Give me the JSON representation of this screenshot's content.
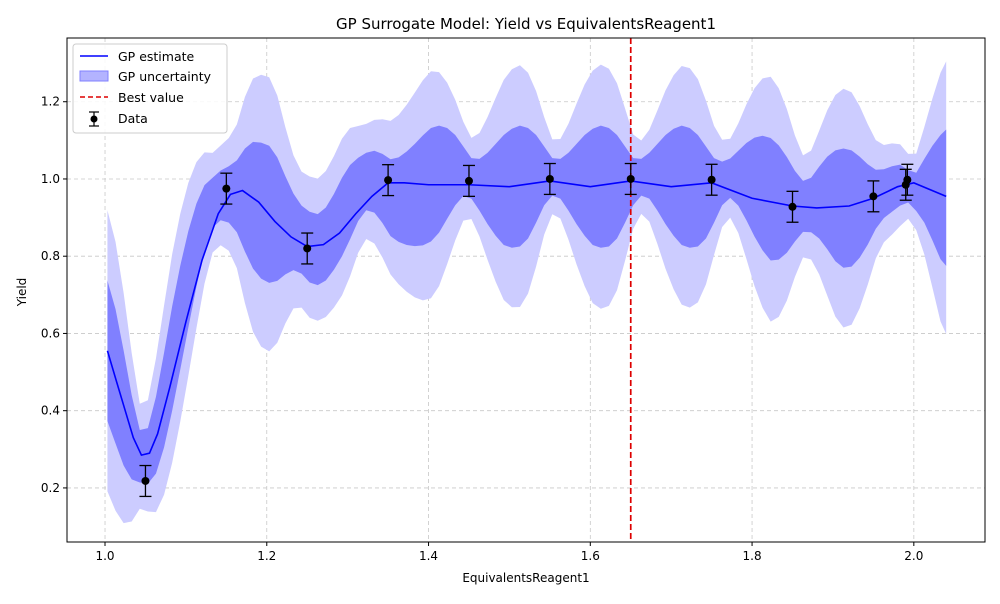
{
  "chart_data": {
    "type": "line",
    "title": "GP Surrogate Model: Yield vs EquivalentsReagent1",
    "xlabel": "EquivalentsReagent1",
    "ylabel": "Yield",
    "xlim": [
      0.953,
      2.088
    ],
    "ylim": [
      0.06,
      1.365
    ],
    "xticks": [
      1.0,
      1.2,
      1.4,
      1.6,
      1.8,
      2.0
    ],
    "xtick_labels": [
      "1.0",
      "1.2",
      "1.4",
      "1.6",
      "1.8",
      "2.0"
    ],
    "yticks": [
      0.2,
      0.4,
      0.6,
      0.8,
      1.0,
      1.2
    ],
    "ytick_labels": [
      "0.2",
      "0.4",
      "0.6",
      "0.8",
      "1.0",
      "1.2"
    ],
    "grid": true,
    "legend_position": "top-left",
    "legend": [
      "GP estimate",
      "GP uncertainty",
      "Best value",
      "Data"
    ],
    "colors": {
      "gp_line": "#0000ff",
      "band_inner": "#8080ff",
      "band_outer": "#ccccff",
      "best_line": "#dd0000",
      "data": "#000000",
      "grid": "#c8c8c8"
    },
    "gp_estimate": {
      "name": "GP estimate",
      "x": [
        1.003,
        1.015,
        1.025,
        1.035,
        1.045,
        1.055,
        1.065,
        1.08,
        1.1,
        1.12,
        1.14,
        1.155,
        1.17,
        1.19,
        1.21,
        1.23,
        1.25,
        1.27,
        1.29,
        1.31,
        1.33,
        1.35,
        1.37,
        1.4,
        1.45,
        1.5,
        1.55,
        1.6,
        1.65,
        1.7,
        1.75,
        1.8,
        1.85,
        1.88,
        1.92,
        1.95,
        1.98,
        2.0,
        2.04
      ],
      "y": [
        0.555,
        0.47,
        0.4,
        0.33,
        0.285,
        0.29,
        0.34,
        0.46,
        0.63,
        0.79,
        0.91,
        0.96,
        0.97,
        0.94,
        0.89,
        0.85,
        0.825,
        0.83,
        0.86,
        0.91,
        0.955,
        0.99,
        0.99,
        0.985,
        0.985,
        0.98,
        0.995,
        0.98,
        0.995,
        0.98,
        0.99,
        0.95,
        0.93,
        0.925,
        0.93,
        0.95,
        0.98,
        0.99,
        0.955
      ]
    },
    "uncertainty": {
      "name": "GP uncertainty",
      "x": [
        1.003,
        1.013,
        1.023,
        1.033,
        1.043,
        1.053,
        1.063,
        1.073,
        1.083,
        1.093,
        1.103,
        1.113,
        1.123,
        1.133,
        1.143,
        1.153,
        1.163,
        1.173,
        1.183,
        1.193,
        1.203,
        1.213,
        1.223,
        1.233,
        1.243,
        1.253,
        1.263,
        1.273,
        1.283,
        1.293,
        1.303,
        1.313,
        1.323,
        1.333,
        1.343,
        1.353,
        1.363,
        1.373,
        1.383,
        1.393,
        1.403,
        1.413,
        1.423,
        1.433,
        1.443,
        1.453,
        1.463,
        1.473,
        1.483,
        1.493,
        1.503,
        1.513,
        1.523,
        1.533,
        1.543,
        1.553,
        1.563,
        1.573,
        1.583,
        1.593,
        1.603,
        1.613,
        1.623,
        1.633,
        1.643,
        1.653,
        1.663,
        1.673,
        1.683,
        1.693,
        1.703,
        1.713,
        1.723,
        1.733,
        1.743,
        1.753,
        1.763,
        1.773,
        1.783,
        1.793,
        1.803,
        1.813,
        1.823,
        1.833,
        1.843,
        1.853,
        1.863,
        1.873,
        1.883,
        1.893,
        1.903,
        1.913,
        1.923,
        1.933,
        1.943,
        1.953,
        1.963,
        1.973,
        1.983,
        1.993,
        2.003,
        2.013,
        2.023,
        2.033,
        2.04
      ],
      "inner_lower": [
        0.373,
        0.315,
        0.258,
        0.222,
        0.214,
        0.211,
        0.237,
        0.305,
        0.4,
        0.506,
        0.615,
        0.721,
        0.814,
        0.874,
        0.893,
        0.887,
        0.862,
        0.812,
        0.768,
        0.742,
        0.731,
        0.736,
        0.753,
        0.764,
        0.755,
        0.732,
        0.725,
        0.737,
        0.765,
        0.8,
        0.844,
        0.891,
        0.919,
        0.913,
        0.886,
        0.852,
        0.837,
        0.829,
        0.826,
        0.828,
        0.838,
        0.861,
        0.897,
        0.932,
        0.956,
        0.949,
        0.918,
        0.883,
        0.853,
        0.829,
        0.822,
        0.825,
        0.846,
        0.887,
        0.932,
        0.957,
        0.949,
        0.918,
        0.883,
        0.853,
        0.829,
        0.822,
        0.825,
        0.846,
        0.887,
        0.932,
        0.957,
        0.949,
        0.918,
        0.883,
        0.853,
        0.829,
        0.822,
        0.825,
        0.846,
        0.887,
        0.932,
        0.951,
        0.931,
        0.893,
        0.851,
        0.815,
        0.789,
        0.791,
        0.809,
        0.838,
        0.863,
        0.862,
        0.846,
        0.818,
        0.787,
        0.77,
        0.773,
        0.796,
        0.83,
        0.871,
        0.899,
        0.915,
        0.931,
        0.939,
        0.917,
        0.887,
        0.841,
        0.792,
        0.775
      ],
      "inner_upper": [
        0.737,
        0.663,
        0.556,
        0.44,
        0.35,
        0.355,
        0.436,
        0.55,
        0.67,
        0.775,
        0.865,
        0.936,
        0.984,
        1.003,
        1.022,
        1.033,
        1.048,
        1.079,
        1.096,
        1.094,
        1.086,
        1.056,
        1.007,
        0.962,
        0.931,
        0.915,
        0.909,
        0.926,
        0.961,
        1.003,
        1.036,
        1.055,
        1.068,
        1.073,
        1.065,
        1.051,
        1.056,
        1.071,
        1.091,
        1.113,
        1.132,
        1.138,
        1.132,
        1.114,
        1.084,
        1.054,
        1.052,
        1.068,
        1.091,
        1.114,
        1.13,
        1.138,
        1.132,
        1.114,
        1.084,
        1.054,
        1.052,
        1.068,
        1.091,
        1.114,
        1.13,
        1.138,
        1.132,
        1.114,
        1.084,
        1.054,
        1.052,
        1.068,
        1.091,
        1.114,
        1.13,
        1.138,
        1.132,
        1.114,
        1.084,
        1.054,
        1.045,
        1.053,
        1.073,
        1.093,
        1.107,
        1.112,
        1.106,
        1.087,
        1.057,
        1.021,
        0.995,
        1.003,
        1.032,
        1.058,
        1.074,
        1.079,
        1.074,
        1.058,
        1.038,
        1.024,
        1.025,
        1.033,
        1.037,
        1.023,
        1.016,
        1.052,
        1.086,
        1.114,
        1.128
      ]
    },
    "data": {
      "name": "Data",
      "x": [
        1.05,
        1.15,
        1.25,
        1.35,
        1.45,
        1.55,
        1.65,
        1.75,
        1.85,
        1.95,
        1.99,
        1.992
      ],
      "y": [
        0.218,
        0.975,
        0.82,
        0.997,
        0.995,
        1.0,
        1.0,
        0.998,
        0.928,
        0.955,
        0.985,
        0.998
      ],
      "yerr": [
        0.04,
        0.04,
        0.04,
        0.04,
        0.04,
        0.04,
        0.04,
        0.04,
        0.04,
        0.04,
        0.04,
        0.04
      ]
    },
    "best_value": {
      "name": "Best value",
      "x": 1.65
    }
  }
}
